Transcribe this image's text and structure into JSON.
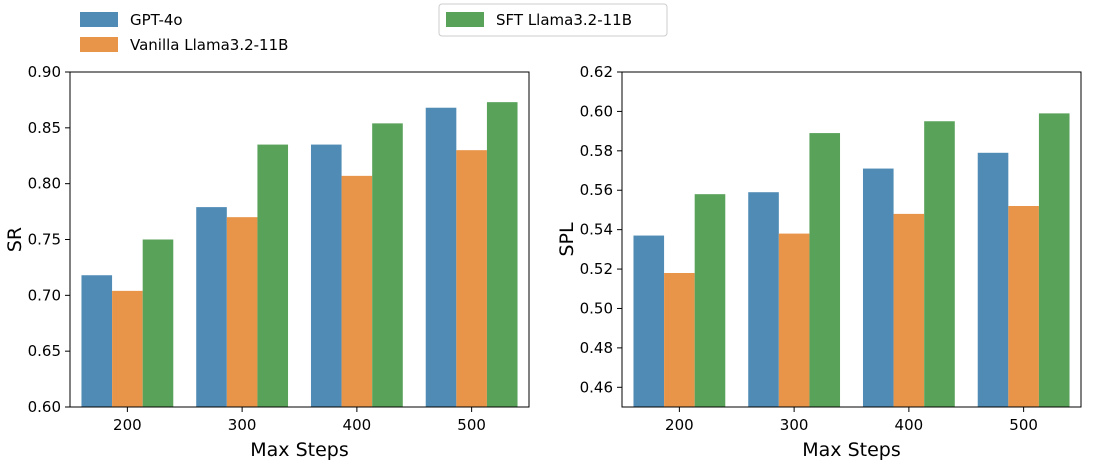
{
  "colors": {
    "GPT-4o": "#4f8bb5",
    "Vanilla Llama3.2-11B": "#e8954a",
    "SFT Llama3.2-11B": "#58a25a"
  },
  "legend": {
    "left": [
      "GPT-4o",
      "Vanilla Llama3.2-11B"
    ],
    "right": [
      "SFT Llama3.2-11B"
    ]
  },
  "chart_data": [
    {
      "type": "bar",
      "categories": [
        "200",
        "300",
        "400",
        "500"
      ],
      "xlabel": "Max Steps",
      "ylabel": "SR",
      "ylim": [
        0.6,
        0.9
      ],
      "yticks": [
        "0.60",
        "0.65",
        "0.70",
        "0.75",
        "0.80",
        "0.85",
        "0.90"
      ],
      "series": [
        {
          "name": "GPT-4o",
          "values": [
            0.718,
            0.779,
            0.835,
            0.868
          ]
        },
        {
          "name": "Vanilla Llama3.2-11B",
          "values": [
            0.704,
            0.77,
            0.807,
            0.83
          ]
        },
        {
          "name": "SFT Llama3.2-11B",
          "values": [
            0.75,
            0.835,
            0.854,
            0.873
          ]
        }
      ]
    },
    {
      "type": "bar",
      "categories": [
        "200",
        "300",
        "400",
        "500"
      ],
      "xlabel": "Max Steps",
      "ylabel": "SPL",
      "ylim": [
        0.45,
        0.62
      ],
      "yticks": [
        "0.46",
        "0.48",
        "0.50",
        "0.52",
        "0.54",
        "0.56",
        "0.58",
        "0.60",
        "0.62"
      ],
      "series": [
        {
          "name": "GPT-4o",
          "values": [
            0.537,
            0.559,
            0.571,
            0.579
          ]
        },
        {
          "name": "Vanilla Llama3.2-11B",
          "values": [
            0.518,
            0.538,
            0.548,
            0.552
          ]
        },
        {
          "name": "SFT Llama3.2-11B",
          "values": [
            0.558,
            0.589,
            0.595,
            0.599
          ]
        }
      ]
    }
  ]
}
